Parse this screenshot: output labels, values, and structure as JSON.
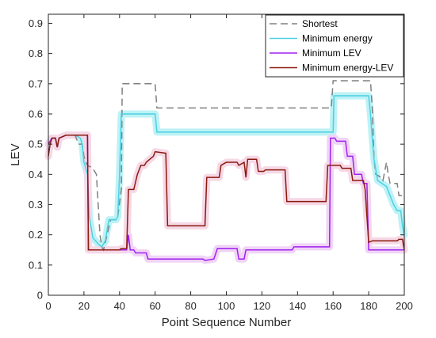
{
  "chart_data": {
    "type": "line",
    "xlabel": "Point Sequence Number",
    "ylabel": "LEV",
    "xlim": [
      0,
      200
    ],
    "ylim": [
      0,
      0.93
    ],
    "xticks": [
      0,
      20,
      40,
      60,
      80,
      100,
      120,
      140,
      160,
      180,
      200
    ],
    "yticks": [
      0,
      0.1,
      0.2,
      0.3,
      0.4,
      0.5,
      0.6,
      0.7,
      0.8,
      0.9
    ],
    "xtick_labels": [
      "0",
      "20",
      "40",
      "60",
      "80",
      "100",
      "120",
      "140",
      "160",
      "180",
      "200"
    ],
    "ytick_labels": [
      "0",
      "0.1",
      "0.2",
      "0.3",
      "0.4",
      "0.5",
      "0.6",
      "0.7",
      "0.8",
      "0.9"
    ],
    "grid": false,
    "legend_position": "top-right",
    "series": [
      {
        "name": "Shortest",
        "color": "#808080",
        "style": "dashed",
        "band_color": "",
        "points": [
          [
            0,
            0.5
          ],
          [
            2,
            0.52
          ],
          [
            4,
            0.52
          ],
          [
            5,
            0.49
          ],
          [
            6,
            0.52
          ],
          [
            10,
            0.53
          ],
          [
            15,
            0.53
          ],
          [
            17,
            0.5
          ],
          [
            19,
            0.5
          ],
          [
            20,
            0.46
          ],
          [
            21,
            0.44
          ],
          [
            22,
            0.43
          ],
          [
            25,
            0.42
          ],
          [
            27,
            0.4
          ],
          [
            28,
            0.3
          ],
          [
            29,
            0.2
          ],
          [
            30,
            0.16
          ],
          [
            31,
            0.15
          ],
          [
            33,
            0.2
          ],
          [
            35,
            0.25
          ],
          [
            38,
            0.25
          ],
          [
            39,
            0.26
          ],
          [
            41,
            0.35
          ],
          [
            41.5,
            0.7
          ],
          [
            60,
            0.7
          ],
          [
            61,
            0.62
          ],
          [
            159,
            0.62
          ],
          [
            160,
            0.71
          ],
          [
            181,
            0.71
          ],
          [
            182,
            0.62
          ],
          [
            183,
            0.45
          ],
          [
            184,
            0.4
          ],
          [
            187,
            0.39
          ],
          [
            188,
            0.38
          ],
          [
            190,
            0.44
          ],
          [
            191,
            0.4
          ],
          [
            192,
            0.37
          ],
          [
            196,
            0.37
          ],
          [
            197,
            0.33
          ],
          [
            200,
            0.33
          ]
        ]
      },
      {
        "name": "Minimum energy",
        "color": "#4dd0e1",
        "style": "solid",
        "band_color": "#bdf2f6",
        "points": [
          [
            0,
            0.5
          ],
          [
            2,
            0.52
          ],
          [
            4,
            0.52
          ],
          [
            5,
            0.49
          ],
          [
            6,
            0.52
          ],
          [
            10,
            0.53
          ],
          [
            15,
            0.53
          ],
          [
            18,
            0.52
          ],
          [
            19,
            0.5
          ],
          [
            20,
            0.44
          ],
          [
            22,
            0.4
          ],
          [
            23,
            0.26
          ],
          [
            25,
            0.19
          ],
          [
            28,
            0.17
          ],
          [
            30,
            0.16
          ],
          [
            32,
            0.18
          ],
          [
            34,
            0.25
          ],
          [
            38,
            0.25
          ],
          [
            39,
            0.26
          ],
          [
            40,
            0.4
          ],
          [
            41,
            0.6
          ],
          [
            60,
            0.6
          ],
          [
            61,
            0.54
          ],
          [
            160,
            0.54
          ],
          [
            160.5,
            0.66
          ],
          [
            180,
            0.66
          ],
          [
            181,
            0.6
          ],
          [
            182,
            0.52
          ],
          [
            183,
            0.45
          ],
          [
            185,
            0.38
          ],
          [
            190,
            0.36
          ],
          [
            192,
            0.33
          ],
          [
            194,
            0.3
          ],
          [
            196,
            0.28
          ],
          [
            198,
            0.28
          ],
          [
            199,
            0.23
          ],
          [
            200,
            0.2
          ]
        ]
      },
      {
        "name": "Minimum LEV",
        "color": "#a020f0",
        "style": "solid",
        "band_color": "#f0d4f6",
        "points": [
          [
            0,
            0.5
          ],
          [
            2,
            0.52
          ],
          [
            4,
            0.52
          ],
          [
            5,
            0.49
          ],
          [
            6,
            0.52
          ],
          [
            10,
            0.53
          ],
          [
            15,
            0.53
          ],
          [
            20,
            0.53
          ],
          [
            22,
            0.53
          ],
          [
            22.5,
            0.15
          ],
          [
            38,
            0.15
          ],
          [
            40,
            0.15
          ],
          [
            44,
            0.15
          ],
          [
            45,
            0.2
          ],
          [
            46,
            0.15
          ],
          [
            48,
            0.15
          ],
          [
            49,
            0.14
          ],
          [
            55,
            0.14
          ],
          [
            56,
            0.12
          ],
          [
            60,
            0.12
          ],
          [
            65,
            0.12
          ],
          [
            66,
            0.12
          ],
          [
            87,
            0.12
          ],
          [
            88,
            0.115
          ],
          [
            93,
            0.12
          ],
          [
            95,
            0.155
          ],
          [
            106,
            0.155
          ],
          [
            107,
            0.12
          ],
          [
            110,
            0.12
          ],
          [
            111,
            0.15
          ],
          [
            115,
            0.15
          ],
          [
            116,
            0.15
          ],
          [
            120,
            0.15
          ],
          [
            137,
            0.15
          ],
          [
            138,
            0.16
          ],
          [
            157,
            0.16
          ],
          [
            158,
            0.16
          ],
          [
            158.5,
            0.52
          ],
          [
            161,
            0.52
          ],
          [
            162,
            0.51
          ],
          [
            167,
            0.51
          ],
          [
            168,
            0.46
          ],
          [
            171,
            0.46
          ],
          [
            172,
            0.4
          ],
          [
            176,
            0.4
          ],
          [
            177,
            0.37
          ],
          [
            179,
            0.37
          ],
          [
            180,
            0.15
          ],
          [
            200,
            0.15
          ]
        ]
      },
      {
        "name": "Minimum energy-LEV",
        "color": "#8b1a10",
        "style": "solid",
        "band_color": "#f6d8e6",
        "points": [
          [
            0,
            0.46
          ],
          [
            1,
            0.5
          ],
          [
            2,
            0.52
          ],
          [
            4,
            0.52
          ],
          [
            5,
            0.49
          ],
          [
            6,
            0.52
          ],
          [
            10,
            0.53
          ],
          [
            15,
            0.53
          ],
          [
            20,
            0.53
          ],
          [
            22,
            0.53
          ],
          [
            22.5,
            0.15
          ],
          [
            40,
            0.15
          ],
          [
            41,
            0.155
          ],
          [
            44,
            0.155
          ],
          [
            45,
            0.35
          ],
          [
            48,
            0.35
          ],
          [
            50,
            0.4
          ],
          [
            52,
            0.43
          ],
          [
            54,
            0.43
          ],
          [
            55,
            0.44
          ],
          [
            57,
            0.45
          ],
          [
            59,
            0.46
          ],
          [
            60,
            0.475
          ],
          [
            66,
            0.47
          ],
          [
            67,
            0.23
          ],
          [
            88,
            0.23
          ],
          [
            89,
            0.39
          ],
          [
            96,
            0.39
          ],
          [
            97,
            0.43
          ],
          [
            100,
            0.44
          ],
          [
            106,
            0.44
          ],
          [
            107,
            0.43
          ],
          [
            110,
            0.44
          ],
          [
            111,
            0.39
          ],
          [
            112,
            0.45
          ],
          [
            117,
            0.45
          ],
          [
            118,
            0.41
          ],
          [
            121,
            0.41
          ],
          [
            122,
            0.415
          ],
          [
            133,
            0.415
          ],
          [
            134,
            0.31
          ],
          [
            156,
            0.31
          ],
          [
            157,
            0.43
          ],
          [
            164,
            0.43
          ],
          [
            165,
            0.42
          ],
          [
            170,
            0.42
          ],
          [
            171,
            0.38
          ],
          [
            177,
            0.38
          ],
          [
            178,
            0.35
          ],
          [
            179,
            0.26
          ],
          [
            180,
            0.175
          ],
          [
            182,
            0.18
          ],
          [
            190,
            0.18
          ],
          [
            196,
            0.18
          ],
          [
            197,
            0.185
          ],
          [
            199,
            0.185
          ],
          [
            200,
            0.15
          ]
        ]
      }
    ]
  }
}
